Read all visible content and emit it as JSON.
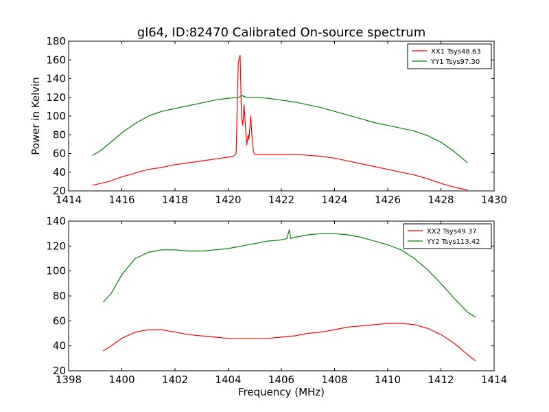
{
  "chart_data": [
    {
      "type": "line",
      "title": "gl64, ID:82470 Calibrated On-source spectrum",
      "xlabel": "",
      "ylabel": "Power in Kelvin",
      "xlim": [
        1414,
        1430
      ],
      "ylim": [
        20,
        180
      ],
      "xticks": [
        1414,
        1416,
        1418,
        1420,
        1422,
        1424,
        1426,
        1428,
        1430
      ],
      "yticks": [
        20,
        40,
        60,
        80,
        100,
        120,
        140,
        160,
        180
      ],
      "legend_position": "top-right",
      "grid": false,
      "series": [
        {
          "name": "XX1 Tsys48.63",
          "color": "#ff0000",
          "points": [
            [
              1414.9,
              26
            ],
            [
              1415.5,
              30
            ],
            [
              1416.0,
              35
            ],
            [
              1416.5,
              39
            ],
            [
              1417.0,
              43
            ],
            [
              1417.5,
              45
            ],
            [
              1418.0,
              48
            ],
            [
              1418.5,
              50
            ],
            [
              1419.0,
              52
            ],
            [
              1419.5,
              54
            ],
            [
              1420.0,
              56
            ],
            [
              1420.2,
              57
            ],
            [
              1420.3,
              60
            ],
            [
              1420.38,
              157
            ],
            [
              1420.45,
              165
            ],
            [
              1420.5,
              100
            ],
            [
              1420.55,
              90
            ],
            [
              1420.6,
              112
            ],
            [
              1420.65,
              88
            ],
            [
              1420.7,
              69
            ],
            [
              1420.75,
              80
            ],
            [
              1420.78,
              75
            ],
            [
              1420.85,
              100
            ],
            [
              1420.9,
              76
            ],
            [
              1420.95,
              62
            ],
            [
              1421.0,
              59
            ],
            [
              1421.5,
              59
            ],
            [
              1422.0,
              59
            ],
            [
              1422.5,
              59
            ],
            [
              1423.0,
              58
            ],
            [
              1423.5,
              57
            ],
            [
              1424.0,
              55
            ],
            [
              1424.5,
              52
            ],
            [
              1425.0,
              49
            ],
            [
              1425.5,
              46
            ],
            [
              1426.0,
              43
            ],
            [
              1426.5,
              40
            ],
            [
              1427.0,
              37
            ],
            [
              1427.5,
              33
            ],
            [
              1428.0,
              28
            ],
            [
              1428.5,
              24
            ],
            [
              1429.0,
              21
            ]
          ]
        },
        {
          "name": "YY1 Tsys97.30",
          "color": "#008000",
          "points": [
            [
              1414.9,
              58
            ],
            [
              1415.2,
              63
            ],
            [
              1415.5,
              70
            ],
            [
              1416.0,
              82
            ],
            [
              1416.5,
              92
            ],
            [
              1417.0,
              100
            ],
            [
              1417.5,
              105
            ],
            [
              1418.0,
              108
            ],
            [
              1418.5,
              111
            ],
            [
              1419.0,
              114
            ],
            [
              1419.5,
              117
            ],
            [
              1420.0,
              119
            ],
            [
              1420.4,
              120
            ],
            [
              1420.5,
              122
            ],
            [
              1420.7,
              120
            ],
            [
              1421.0,
              120
            ],
            [
              1421.5,
              119
            ],
            [
              1422.0,
              117
            ],
            [
              1422.5,
              115
            ],
            [
              1423.0,
              112
            ],
            [
              1423.5,
              109
            ],
            [
              1424.0,
              105
            ],
            [
              1424.5,
              101
            ],
            [
              1425.0,
              97
            ],
            [
              1425.5,
              93
            ],
            [
              1426.0,
              90
            ],
            [
              1426.5,
              87
            ],
            [
              1427.0,
              84
            ],
            [
              1427.5,
              79
            ],
            [
              1428.0,
              72
            ],
            [
              1428.5,
              62
            ],
            [
              1429.0,
              50
            ]
          ]
        }
      ]
    },
    {
      "type": "line",
      "title": "",
      "xlabel": "Frequency (MHz)",
      "ylabel": "",
      "xlim": [
        1398,
        1414
      ],
      "ylim": [
        20,
        140
      ],
      "xticks": [
        1398,
        1400,
        1402,
        1404,
        1406,
        1408,
        1410,
        1412,
        1414
      ],
      "yticks": [
        20,
        40,
        60,
        80,
        100,
        120,
        140
      ],
      "legend_position": "top-right",
      "grid": false,
      "series": [
        {
          "name": "XX2 Tsys49.37",
          "color": "#ff0000",
          "points": [
            [
              1399.3,
              36
            ],
            [
              1399.6,
              40
            ],
            [
              1400.0,
              46
            ],
            [
              1400.5,
              51
            ],
            [
              1401.0,
              53
            ],
            [
              1401.5,
              53
            ],
            [
              1402.0,
              51
            ],
            [
              1402.5,
              49
            ],
            [
              1403.0,
              48
            ],
            [
              1403.5,
              47
            ],
            [
              1404.0,
              46
            ],
            [
              1404.5,
              46
            ],
            [
              1405.0,
              46
            ],
            [
              1405.5,
              46
            ],
            [
              1406.0,
              47
            ],
            [
              1406.5,
              48
            ],
            [
              1407.0,
              50
            ],
            [
              1407.5,
              51
            ],
            [
              1408.0,
              53
            ],
            [
              1408.5,
              55
            ],
            [
              1409.0,
              56
            ],
            [
              1409.5,
              57
            ],
            [
              1410.0,
              58
            ],
            [
              1410.5,
              58
            ],
            [
              1411.0,
              57
            ],
            [
              1411.5,
              54
            ],
            [
              1412.0,
              49
            ],
            [
              1412.5,
              42
            ],
            [
              1413.0,
              33
            ],
            [
              1413.3,
              28
            ]
          ]
        },
        {
          "name": "YY2 Tsys113.42",
          "color": "#008000",
          "points": [
            [
              1399.3,
              75
            ],
            [
              1399.6,
              82
            ],
            [
              1400.0,
              97
            ],
            [
              1400.5,
              110
            ],
            [
              1401.0,
              115
            ],
            [
              1401.5,
              117
            ],
            [
              1402.0,
              117
            ],
            [
              1402.5,
              116
            ],
            [
              1403.0,
              116
            ],
            [
              1403.5,
              117
            ],
            [
              1404.0,
              118
            ],
            [
              1404.5,
              120
            ],
            [
              1405.0,
              122
            ],
            [
              1405.5,
              124
            ],
            [
              1406.0,
              125
            ],
            [
              1406.2,
              126
            ],
            [
              1406.3,
              133
            ],
            [
              1406.35,
              126
            ],
            [
              1406.5,
              127
            ],
            [
              1407.0,
              129
            ],
            [
              1407.5,
              130
            ],
            [
              1408.0,
              130
            ],
            [
              1408.5,
              129
            ],
            [
              1409.0,
              127
            ],
            [
              1409.5,
              124
            ],
            [
              1410.0,
              121
            ],
            [
              1410.5,
              117
            ],
            [
              1411.0,
              110
            ],
            [
              1411.5,
              101
            ],
            [
              1412.0,
              90
            ],
            [
              1412.5,
              78
            ],
            [
              1413.0,
              67
            ],
            [
              1413.3,
              63
            ]
          ]
        }
      ]
    }
  ]
}
